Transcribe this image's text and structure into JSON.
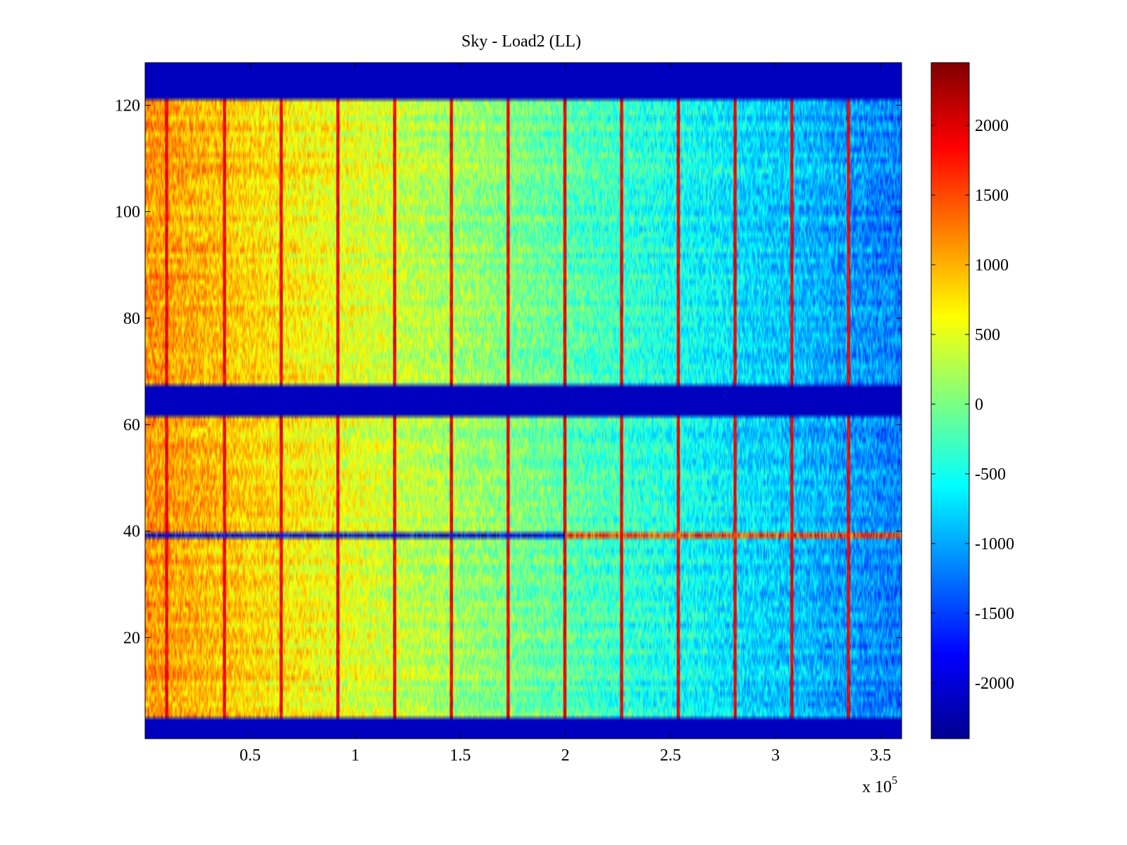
{
  "chart_data": {
    "type": "heatmap",
    "title": "Sky - Load2 (LL)",
    "xlabel": "",
    "ylabel": "",
    "x_multiplier": "x 10",
    "x_multiplier_exp": "5",
    "xlim": [
      0,
      3.6
    ],
    "ylim": [
      1,
      128
    ],
    "x_ticks": [
      0.5,
      1,
      1.5,
      2,
      2.5,
      3,
      3.5
    ],
    "x_tick_labels": [
      "0.5",
      "1",
      "1.5",
      "2",
      "2.5",
      "3",
      "3.5"
    ],
    "y_ticks": [
      20,
      40,
      60,
      80,
      100,
      120
    ],
    "y_tick_labels": [
      "20",
      "40",
      "60",
      "80",
      "100",
      "120"
    ],
    "colormap": "jet",
    "colorbar": {
      "range": [
        -2400,
        2450
      ],
      "ticks": [
        2000,
        1500,
        1000,
        500,
        0,
        -500,
        -1000,
        -1500,
        -2000
      ],
      "tick_labels": [
        "2000",
        "1500",
        "1000",
        "500",
        "0",
        "-500",
        "-1000",
        "-1500",
        "-2000"
      ]
    },
    "masked_row_bands": [
      [
        1,
        4
      ],
      [
        62,
        67
      ],
      [
        122,
        128
      ]
    ],
    "trend": {
      "description": "values decrease from left to right",
      "value_at_x_start": 1300,
      "value_at_x_end": -1400
    },
    "vertical_stripes_x": [
      0.1,
      0.375,
      0.645,
      0.915,
      1.185,
      1.455,
      1.725,
      1.995,
      2.265,
      2.535,
      2.805,
      3.075,
      3.345
    ],
    "anomalous_row": {
      "y": 39,
      "left_value": -2200,
      "right_value": 1800,
      "switch_x": 2.0
    }
  }
}
